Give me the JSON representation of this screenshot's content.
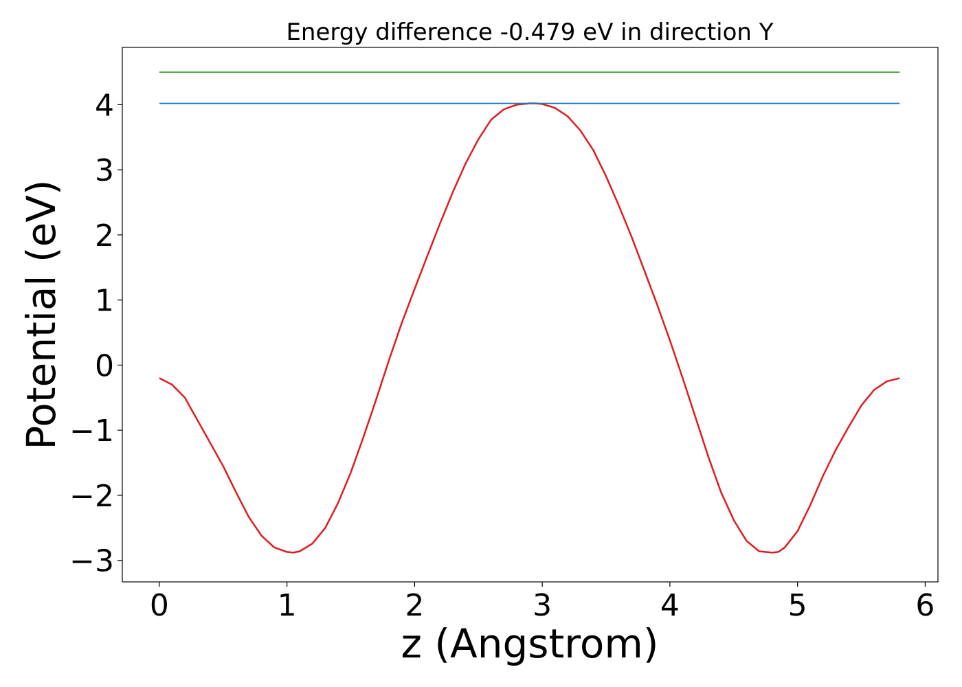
{
  "chart_data": {
    "type": "line",
    "title": "Energy difference -0.479 eV in direction Y",
    "xlabel": "z (Angstrom)",
    "ylabel": "Potential (eV)",
    "xlim": [
      -0.29,
      6.1
    ],
    "ylim": [
      -3.33,
      4.88
    ],
    "x_ticks": [
      0,
      1,
      2,
      3,
      4,
      5,
      6
    ],
    "x_tick_labels": [
      "0",
      "1",
      "2",
      "3",
      "4",
      "5",
      "6"
    ],
    "y_ticks": [
      -3,
      -2,
      -1,
      0,
      1,
      2,
      3,
      4
    ],
    "y_tick_labels": [
      "−3",
      "−2",
      "−1",
      "0",
      "1",
      "2",
      "3",
      "4"
    ],
    "grid": false,
    "legend": "none",
    "series": [
      {
        "color": "#e31a1c",
        "x": [
          0.0,
          0.1,
          0.2,
          0.3,
          0.4,
          0.5,
          0.6,
          0.7,
          0.8,
          0.9,
          1.0,
          1.05,
          1.1,
          1.2,
          1.3,
          1.4,
          1.5,
          1.6,
          1.7,
          1.8,
          1.9,
          2.0,
          2.1,
          2.2,
          2.3,
          2.4,
          2.5,
          2.6,
          2.7,
          2.8,
          2.9,
          2.95,
          3.0,
          3.1,
          3.2,
          3.3,
          3.4,
          3.5,
          3.6,
          3.7,
          3.8,
          3.9,
          4.0,
          4.1,
          4.2,
          4.3,
          4.4,
          4.5,
          4.6,
          4.7,
          4.8,
          4.85,
          4.9,
          5.0,
          5.1,
          5.2,
          5.3,
          5.4,
          5.5,
          5.6,
          5.7,
          5.8
        ],
        "y": [
          -0.2,
          -0.3,
          -0.5,
          -0.85,
          -1.2,
          -1.55,
          -1.95,
          -2.33,
          -2.62,
          -2.8,
          -2.87,
          -2.88,
          -2.86,
          -2.74,
          -2.5,
          -2.12,
          -1.65,
          -1.1,
          -0.52,
          0.08,
          0.65,
          1.17,
          1.68,
          2.18,
          2.66,
          3.1,
          3.47,
          3.77,
          3.93,
          4.0,
          4.02,
          4.02,
          4.01,
          3.95,
          3.82,
          3.6,
          3.3,
          2.9,
          2.45,
          1.97,
          1.45,
          0.93,
          0.38,
          -0.2,
          -0.8,
          -1.4,
          -1.95,
          -2.38,
          -2.7,
          -2.86,
          -2.88,
          -2.87,
          -2.8,
          -2.55,
          -2.15,
          -1.7,
          -1.3,
          -0.95,
          -0.62,
          -0.38,
          -0.25,
          -0.2
        ]
      },
      {
        "color": "#1f78b4",
        "x": [
          0.0,
          5.8
        ],
        "y": [
          4.02,
          4.02
        ]
      },
      {
        "color": "#33a02c",
        "x": [
          0.0,
          5.8
        ],
        "y": [
          4.5,
          4.5
        ]
      }
    ]
  }
}
